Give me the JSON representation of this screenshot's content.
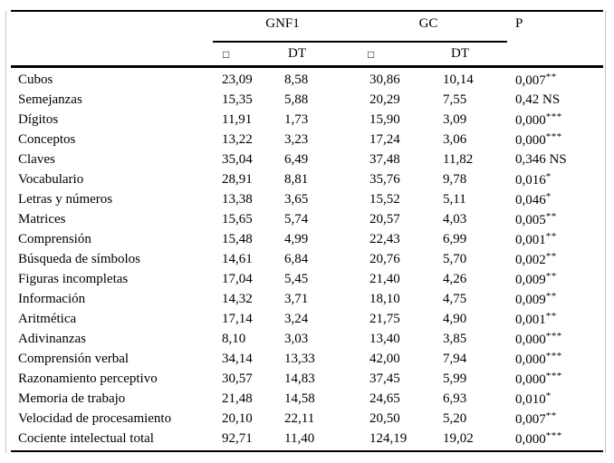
{
  "page": {
    "background_color": "#ffffff",
    "rule_color": "#000000",
    "frame_color": "#c4c4c4"
  },
  "table": {
    "group_headers": {
      "group1": "GNF1",
      "group2": "GC",
      "p": "P"
    },
    "sub_headers": {
      "g1_mean": "□",
      "g1_dt": "DT",
      "g2_mean": "□",
      "g2_dt": "DT"
    },
    "rows": [
      {
        "label": "Cubos",
        "gnf1_mean": "23,09",
        "gnf1_dt": "8,58",
        "gc_mean": "30,86",
        "gc_dt": "10,14",
        "p": "0,007",
        "sig": "**"
      },
      {
        "label": "Semejanzas",
        "gnf1_mean": "15,35",
        "gnf1_dt": "5,88",
        "gc_mean": "20,29",
        "gc_dt": "7,55",
        "p": "0,42",
        "sig": "NS"
      },
      {
        "label": "Dígitos",
        "gnf1_mean": "11,91",
        "gnf1_dt": "1,73",
        "gc_mean": "15,90",
        "gc_dt": "3,09",
        "p": "0,000",
        "sig": "***"
      },
      {
        "label": "Conceptos",
        "gnf1_mean": "13,22",
        "gnf1_dt": "3,23",
        "gc_mean": "17,24",
        "gc_dt": "3,06",
        "p": "0,000",
        "sig": "***"
      },
      {
        "label": "Claves",
        "gnf1_mean": "35,04",
        "gnf1_dt": "6,49",
        "gc_mean": "37,48",
        "gc_dt": "11,82",
        "p": "0,346",
        "sig": "NS"
      },
      {
        "label": "Vocabulario",
        "gnf1_mean": "28,91",
        "gnf1_dt": "8,81",
        "gc_mean": "35,76",
        "gc_dt": "9,78",
        "p": "0,016",
        "sig": "*"
      },
      {
        "label": "Letras y números",
        "gnf1_mean": "13,38",
        "gnf1_dt": "3,65",
        "gc_mean": "15,52",
        "gc_dt": "5,11",
        "p": "0,046",
        "sig": "*"
      },
      {
        "label": "Matrices",
        "gnf1_mean": "15,65",
        "gnf1_dt": "5,74",
        "gc_mean": "20,57",
        "gc_dt": "4,03",
        "p": "0,005",
        "sig": "**"
      },
      {
        "label": "Comprensión",
        "gnf1_mean": "15,48",
        "gnf1_dt": "4,99",
        "gc_mean": "22,43",
        "gc_dt": "6,99",
        "p": "0,001",
        "sig": "**"
      },
      {
        "label": "Búsqueda de símbolos",
        "gnf1_mean": "14,61",
        "gnf1_dt": "6,84",
        "gc_mean": "20,76",
        "gc_dt": "5,70",
        "p": "0,002",
        "sig": "**"
      },
      {
        "label": "Figuras incompletas",
        "gnf1_mean": "17,04",
        "gnf1_dt": "5,45",
        "gc_mean": "21,40",
        "gc_dt": "4,26",
        "p": "0,009",
        "sig": "**"
      },
      {
        "label": "Información",
        "gnf1_mean": "14,32",
        "gnf1_dt": "3,71",
        "gc_mean": "18,10",
        "gc_dt": "4,75",
        "p": "0,009",
        "sig": "**"
      },
      {
        "label": "Aritmética",
        "gnf1_mean": "17,14",
        "gnf1_dt": "3,24",
        "gc_mean": "21,75",
        "gc_dt": "4,90",
        "p": "0,001",
        "sig": "**"
      },
      {
        "label": "Adivinanzas",
        "gnf1_mean": "8,10",
        "gnf1_dt": "3,03",
        "gc_mean": "13,40",
        "gc_dt": "3,85",
        "p": "0,000",
        "sig": "***"
      },
      {
        "label": "Comprensión verbal",
        "gnf1_mean": "34,14",
        "gnf1_dt": "13,33",
        "gc_mean": "42,00",
        "gc_dt": "7,94",
        "p": "0,000",
        "sig": "***"
      },
      {
        "label": "Razonamiento perceptivo",
        "gnf1_mean": "30,57",
        "gnf1_dt": "14,83",
        "gc_mean": "37,45",
        "gc_dt": "5,99",
        "p": "0,000",
        "sig": "***"
      },
      {
        "label": "Memoria de trabajo",
        "gnf1_mean": "21,48",
        "gnf1_dt": "14,58",
        "gc_mean": "24,65",
        "gc_dt": "6,93",
        "p": "0,010",
        "sig": "*"
      },
      {
        "label": "Velocidad de procesamiento",
        "gnf1_mean": "20,10",
        "gnf1_dt": "22,11",
        "gc_mean": "20,50",
        "gc_dt": "5,20",
        "p": "0,007",
        "sig": "**"
      },
      {
        "label": "Cociente intelectual total",
        "gnf1_mean": "92,71",
        "gnf1_dt": "11,40",
        "gc_mean": "124,19",
        "gc_dt": "19,02",
        "p": "0,000",
        "sig": "***"
      }
    ]
  }
}
